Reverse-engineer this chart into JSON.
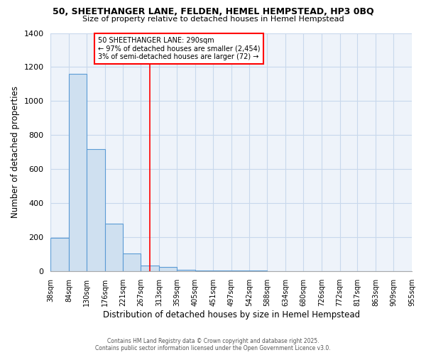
{
  "title": "50, SHEETHANGER LANE, FELDEN, HEMEL HEMPSTEAD, HP3 0BQ",
  "subtitle": "Size of property relative to detached houses in Hemel Hempstead",
  "xlabel": "Distribution of detached houses by size in Hemel Hempstead",
  "ylabel": "Number of detached properties",
  "bin_edges": [
    38,
    84,
    130,
    176,
    221,
    267,
    313,
    359,
    405,
    451,
    497,
    542,
    588,
    634,
    680,
    726,
    772,
    817,
    863,
    909,
    955
  ],
  "bar_heights": [
    195,
    1160,
    720,
    280,
    105,
    35,
    25,
    10,
    5,
    5,
    5,
    5,
    0,
    0,
    0,
    0,
    0,
    0,
    0,
    0
  ],
  "bar_color": "#cfe0f0",
  "bar_edge_color": "#5b9bd5",
  "grid_color": "#c8d8ec",
  "bg_color": "#ffffff",
  "plot_bg_color": "#eef3fa",
  "red_line_x": 290,
  "annotation_title": "50 SHEETHANGER LANE: 290sqm",
  "annotation_line2": "← 97% of detached houses are smaller (2,454)",
  "annotation_line3": "3% of semi-detached houses are larger (72) →",
  "ylim": [
    0,
    1400
  ],
  "yticks": [
    0,
    200,
    400,
    600,
    800,
    1000,
    1200,
    1400
  ],
  "footer_line1": "Contains HM Land Registry data © Crown copyright and database right 2025.",
  "footer_line2": "Contains public sector information licensed under the Open Government Licence v3.0."
}
